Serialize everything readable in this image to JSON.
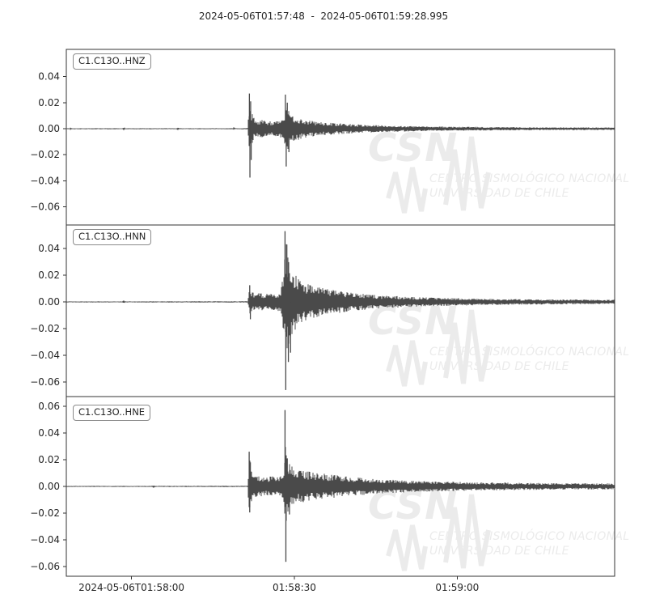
{
  "title": "2024-05-06T01:57:48  -  2024-05-06T01:59:28.995",
  "watermark": {
    "logo_text": "CSN",
    "line1": "CENTRO SISMOLÓGICO NACIONAL",
    "line2": "UNIVERSIDAD DE CHILE",
    "color": "#ebebeb"
  },
  "colors": {
    "trace": "#4a4a4a",
    "frame": "#333333",
    "tick_label": "#262626",
    "background": "#ffffff"
  },
  "x_axis": {
    "tick_labels": [
      "2024-05-06T01:58:00",
      "01:58:30",
      "01:59:00"
    ],
    "tick_times_s": [
      12,
      42,
      72
    ],
    "range_s": [
      0,
      100.995
    ],
    "start_time": "2024-05-06T01:57:48",
    "end_time": "2024-05-06T01:59:28.995"
  },
  "chart_data": [
    {
      "type": "line",
      "trace_id": "C1.C13O..HNZ",
      "y_tick_values": [
        0.04,
        0.02,
        0.0,
        -0.02,
        -0.04,
        -0.06
      ],
      "y_tick_labels": [
        "0.04",
        "0.02",
        "0.00",
        "−0.02",
        "−0.04",
        "−0.06"
      ],
      "ylim": [
        -0.0739,
        0.0609
      ],
      "p_arrival_s": 33.7,
      "s_arrival_s": 40.3,
      "seed": 7,
      "amplitude_envelope_t_a": [
        [
          0,
          0.0004
        ],
        [
          0.6,
          0.0004
        ],
        [
          0.8,
          0.0013
        ],
        [
          1.0,
          0.0004
        ],
        [
          10.3,
          0.0004
        ],
        [
          10.55,
          0.0014
        ],
        [
          10.9,
          0.0004
        ],
        [
          20.3,
          0.0004
        ],
        [
          20.55,
          0.0012
        ],
        [
          20.8,
          0.0004
        ],
        [
          30.6,
          0.0004
        ],
        [
          30.85,
          0.0012
        ],
        [
          31.1,
          0.0004
        ],
        [
          33.4,
          0.0005
        ],
        [
          33.75,
          0.026
        ],
        [
          34.1,
          0.013
        ],
        [
          34.6,
          0.0085
        ],
        [
          35.5,
          0.007
        ],
        [
          37,
          0.006
        ],
        [
          39,
          0.0058
        ],
        [
          40.1,
          0.008
        ],
        [
          40.45,
          0.022
        ],
        [
          41,
          0.013
        ],
        [
          41.8,
          0.01
        ],
        [
          42.8,
          0.0085
        ],
        [
          44,
          0.007
        ],
        [
          45.5,
          0.006
        ],
        [
          47,
          0.005
        ],
        [
          49,
          0.0045
        ],
        [
          51,
          0.004
        ],
        [
          54,
          0.0033
        ],
        [
          57,
          0.0028
        ],
        [
          60,
          0.0024
        ],
        [
          64,
          0.002
        ],
        [
          68,
          0.0017
        ],
        [
          73,
          0.0015
        ],
        [
          80,
          0.0013
        ],
        [
          88,
          0.0011
        ],
        [
          101,
          0.001
        ]
      ],
      "peak_spikes_t_a": [
        [
          33.72,
          0.027
        ],
        [
          33.82,
          -0.0375
        ],
        [
          33.95,
          0.021
        ],
        [
          34.05,
          -0.024
        ],
        [
          40.35,
          0.0262
        ],
        [
          40.5,
          -0.029
        ],
        [
          40.7,
          0.02
        ],
        [
          41.0,
          -0.018
        ]
      ]
    },
    {
      "type": "line",
      "trace_id": "C1.C13O..HNN",
      "y_tick_values": [
        0.04,
        0.02,
        0.0,
        -0.02,
        -0.04,
        -0.06
      ],
      "y_tick_labels": [
        "0.04",
        "0.02",
        "0.00",
        "−0.02",
        "−0.04",
        "−0.06"
      ],
      "ylim": [
        -0.0709,
        0.0576
      ],
      "p_arrival_s": 33.7,
      "s_arrival_s": 40.3,
      "seed": 8,
      "amplitude_envelope_t_a": [
        [
          0,
          0.0004
        ],
        [
          10.3,
          0.0004
        ],
        [
          10.55,
          0.0012
        ],
        [
          10.85,
          0.0004
        ],
        [
          33.4,
          0.0005
        ],
        [
          33.75,
          0.01
        ],
        [
          34.3,
          0.0075
        ],
        [
          35.5,
          0.0065
        ],
        [
          37.5,
          0.006
        ],
        [
          39.5,
          0.007
        ],
        [
          40.15,
          0.03
        ],
        [
          40.5,
          0.046
        ],
        [
          40.9,
          0.034
        ],
        [
          41.5,
          0.027
        ],
        [
          42.2,
          0.021
        ],
        [
          43,
          0.016
        ],
        [
          44,
          0.014
        ],
        [
          45.5,
          0.012
        ],
        [
          47,
          0.0105
        ],
        [
          49,
          0.009
        ],
        [
          51.5,
          0.0075
        ],
        [
          54,
          0.0063
        ],
        [
          57,
          0.0052
        ],
        [
          60,
          0.0045
        ],
        [
          64,
          0.0038
        ],
        [
          68,
          0.0032
        ],
        [
          73,
          0.0027
        ],
        [
          80,
          0.0022
        ],
        [
          88,
          0.0019
        ],
        [
          101,
          0.0016
        ]
      ],
      "peak_spikes_t_a": [
        [
          33.78,
          0.0125
        ],
        [
          33.9,
          -0.013
        ],
        [
          40.28,
          0.053
        ],
        [
          40.42,
          -0.066
        ],
        [
          40.62,
          0.043
        ],
        [
          40.9,
          -0.045
        ],
        [
          41.3,
          -0.038
        ]
      ]
    },
    {
      "type": "line",
      "trace_id": "C1.C13O..HNE",
      "y_tick_values": [
        0.06,
        0.04,
        0.02,
        0.0,
        -0.02,
        -0.04,
        -0.06
      ],
      "y_tick_labels": [
        "0.06",
        "0.04",
        "0.02",
        "0.00",
        "−0.02",
        "−0.04",
        "−0.06"
      ],
      "ylim": [
        -0.0673,
        0.0673
      ],
      "p_arrival_s": 33.7,
      "s_arrival_s": 40.3,
      "seed": 9,
      "amplitude_envelope_t_a": [
        [
          0,
          0.0004
        ],
        [
          15.8,
          0.0004
        ],
        [
          16.05,
          0.0012
        ],
        [
          16.3,
          0.0004
        ],
        [
          33.4,
          0.0005
        ],
        [
          33.7,
          0.022
        ],
        [
          34.2,
          0.01
        ],
        [
          35,
          0.008
        ],
        [
          36.5,
          0.0072
        ],
        [
          38.5,
          0.0075
        ],
        [
          40.0,
          0.009
        ],
        [
          40.3,
          0.034
        ],
        [
          40.8,
          0.019
        ],
        [
          41.6,
          0.015
        ],
        [
          42.8,
          0.0125
        ],
        [
          44,
          0.0115
        ],
        [
          45.5,
          0.0105
        ],
        [
          47.5,
          0.0095
        ],
        [
          50,
          0.0082
        ],
        [
          53,
          0.007
        ],
        [
          56,
          0.006
        ],
        [
          59,
          0.0052
        ],
        [
          63,
          0.0045
        ],
        [
          68,
          0.0038
        ],
        [
          73,
          0.0033
        ],
        [
          80,
          0.0029
        ],
        [
          88,
          0.0025
        ],
        [
          101,
          0.0022
        ]
      ],
      "peak_spikes_t_a": [
        [
          33.68,
          0.026
        ],
        [
          33.78,
          -0.0195
        ],
        [
          33.9,
          0.018
        ],
        [
          40.28,
          0.0572
        ],
        [
          40.44,
          -0.0565
        ],
        [
          40.7,
          0.021
        ],
        [
          41.1,
          -0.021
        ]
      ]
    }
  ]
}
